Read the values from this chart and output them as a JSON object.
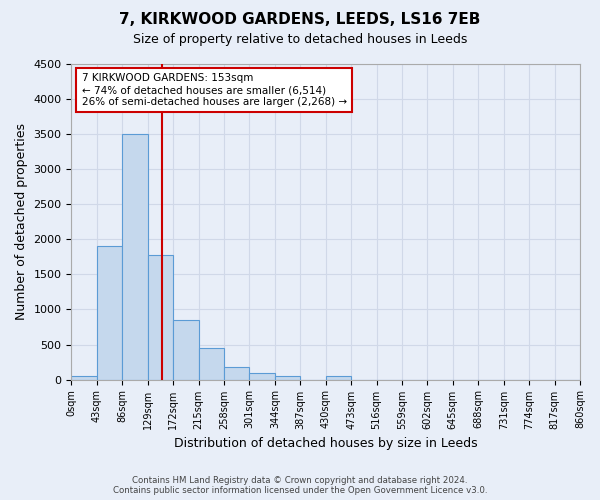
{
  "title": "7, KIRKWOOD GARDENS, LEEDS, LS16 7EB",
  "subtitle": "Size of property relative to detached houses in Leeds",
  "xlabel": "Distribution of detached houses by size in Leeds",
  "ylabel": "Number of detached properties",
  "bar_color": "#c5d8ed",
  "bar_edge_color": "#5b9bd5",
  "bin_labels": [
    "0sqm",
    "43sqm",
    "86sqm",
    "129sqm",
    "172sqm",
    "215sqm",
    "258sqm",
    "301sqm",
    "344sqm",
    "387sqm",
    "430sqm",
    "473sqm",
    "516sqm",
    "559sqm",
    "602sqm",
    "645sqm",
    "688sqm",
    "731sqm",
    "774sqm",
    "817sqm",
    "860sqm"
  ],
  "bar_heights": [
    50,
    1900,
    3500,
    1780,
    850,
    450,
    175,
    90,
    50,
    0,
    55,
    0,
    0,
    0,
    0,
    0,
    0,
    0,
    0,
    0
  ],
  "bin_edges": [
    0,
    43,
    86,
    129,
    172,
    215,
    258,
    301,
    344,
    387,
    430,
    473,
    516,
    559,
    602,
    645,
    688,
    731,
    774,
    817,
    860
  ],
  "ylim": [
    0,
    4500
  ],
  "yticks": [
    0,
    500,
    1000,
    1500,
    2000,
    2500,
    3000,
    3500,
    4000,
    4500
  ],
  "vline_x": 153,
  "vline_color": "#cc0000",
  "annotation_text_line1": "7 KIRKWOOD GARDENS: 153sqm",
  "annotation_text_line2": "← 74% of detached houses are smaller (6,514)",
  "annotation_text_line3": "26% of semi-detached houses are larger (2,268) →",
  "annotation_box_color": "#ffffff",
  "annotation_box_edge_color": "#cc0000",
  "footer_line1": "Contains HM Land Registry data © Crown copyright and database right 2024.",
  "footer_line2": "Contains public sector information licensed under the Open Government Licence v3.0.",
  "grid_color": "#d0d8e8",
  "background_color": "#e8eef8"
}
